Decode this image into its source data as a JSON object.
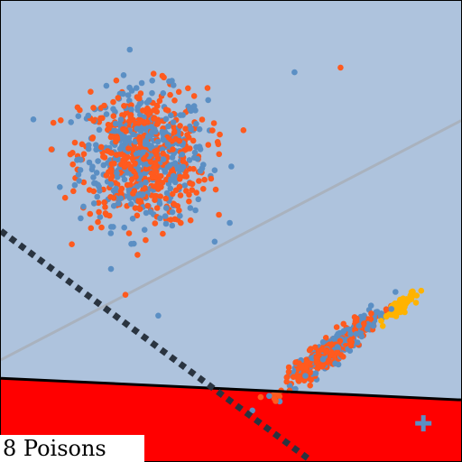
{
  "caption": "8 Poisons",
  "colors": {
    "background": "#aec3dd",
    "clean_blue": "#5b8fc4",
    "clean_orange": "#ff5a1e",
    "poison_gold": "#ffb300",
    "poison_region": "#ff0000",
    "boundary": "#000000",
    "dotted_boundary": "#2a3440",
    "gray_line": "#a7aeb7",
    "plus_marker": "#5b8fc4"
  },
  "chart_data": {
    "type": "scatter",
    "xlim": [
      0,
      10
    ],
    "ylim": [
      0,
      10
    ],
    "grid": false,
    "legend": "none",
    "clusters": [
      {
        "color_key": "clean_blue",
        "count": 430,
        "center": [
          3.1,
          6.6
        ],
        "spread": [
          1.25,
          1.3
        ],
        "angle": 0
      },
      {
        "color_key": "clean_orange",
        "count": 460,
        "center": [
          3.1,
          6.6
        ],
        "spread": [
          1.25,
          1.35
        ],
        "angle": 0
      },
      {
        "color_key": "clean_blue",
        "count": 230,
        "center": [
          7.35,
          2.55
        ],
        "spread": [
          1.15,
          0.2
        ],
        "angle": 38
      },
      {
        "color_key": "clean_orange",
        "count": 320,
        "center": [
          7.1,
          2.35
        ],
        "spread": [
          1.05,
          0.2
        ],
        "angle": 38
      },
      {
        "color_key": "poison_gold",
        "count": 70,
        "center": [
          8.65,
          3.35
        ],
        "spread": [
          0.38,
          0.13
        ],
        "angle": 38
      }
    ],
    "outliers": [
      {
        "color_key": "clean_orange",
        "x": 7.38,
        "y": 8.55
      },
      {
        "color_key": "clean_blue",
        "x": 6.38,
        "y": 8.45
      },
      {
        "color_key": "clean_blue",
        "x": 3.42,
        "y": 3.16
      }
    ],
    "lines": [
      {
        "role": "solid-boundary",
        "color_key": "boundary",
        "points": [
          [
            0,
            1.8
          ],
          [
            10,
            1.33
          ]
        ]
      },
      {
        "role": "dotted-boundary",
        "color_key": "dotted_boundary",
        "points": [
          [
            0,
            5.0
          ],
          [
            6.75,
            0
          ]
        ]
      },
      {
        "role": "faint-line",
        "color_key": "gray_line",
        "points": [
          [
            0,
            2.2
          ],
          [
            10,
            7.4
          ]
        ]
      }
    ],
    "shaded_region": {
      "color_key": "poison_region",
      "below_line": "solid-boundary"
    },
    "marker": {
      "shape": "plus",
      "color_key": "plus_marker",
      "x": 9.18,
      "y": 0.82
    }
  }
}
